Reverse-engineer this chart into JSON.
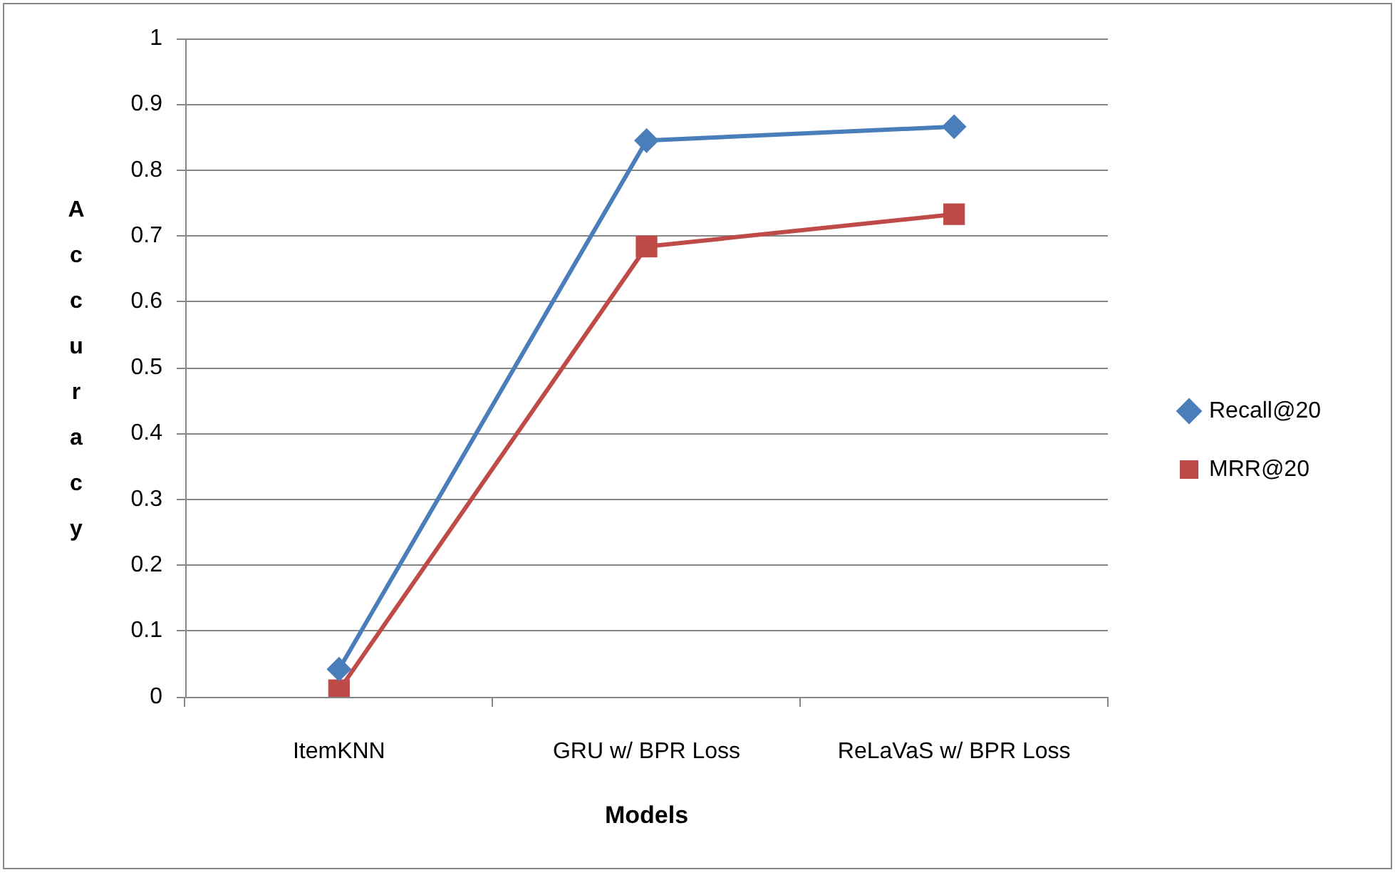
{
  "chart_data": {
    "type": "line",
    "xlabel": "Models",
    "ylabel": "Accuracy",
    "categories": [
      "ItemKNN",
      "GRU w/ BPR Loss",
      "ReLaVaS w/ BPR Loss"
    ],
    "series": [
      {
        "name": "Recall@20",
        "color": "#4a7ebb",
        "marker": "diamond",
        "values": [
          0.042,
          0.845,
          0.866
        ]
      },
      {
        "name": "MRR@20",
        "color": "#be4b48",
        "marker": "square",
        "values": [
          0.01,
          0.684,
          0.733
        ]
      }
    ],
    "ylim": [
      0,
      1
    ],
    "yticks": [
      0,
      0.1,
      0.2,
      0.3,
      0.4,
      0.5,
      0.6,
      0.7,
      0.8,
      0.9,
      1
    ],
    "grid": "y",
    "legend": "right"
  }
}
